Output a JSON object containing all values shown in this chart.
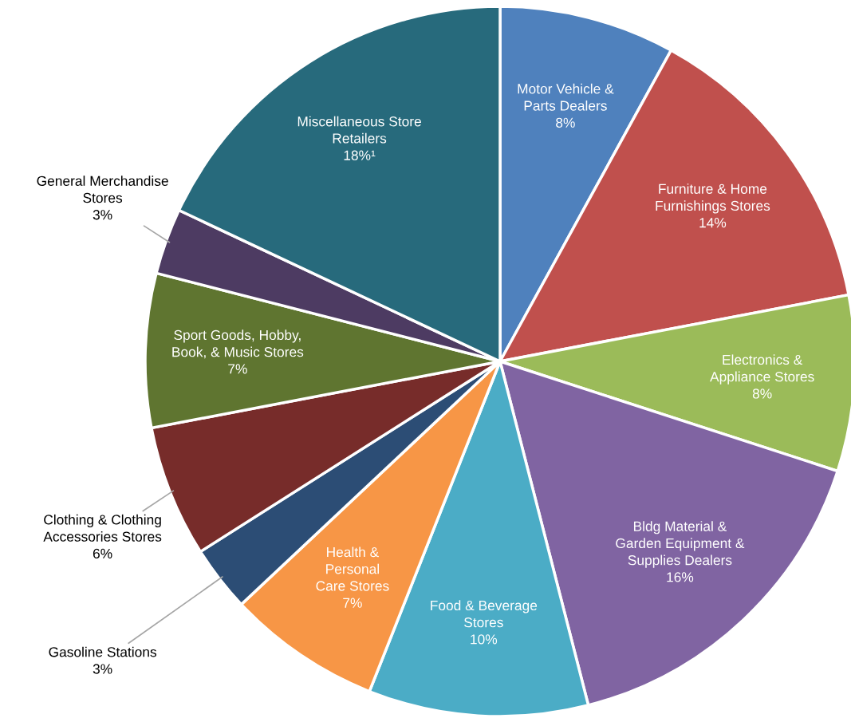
{
  "chart_data": {
    "type": "pie",
    "categories": [
      "Motor Vehicle &\nParts Dealers",
      "Furniture & Home\nFurnishings Stores",
      "Electronics &\nAppliance Stores",
      "Bldg Material &\nGarden Equipment &\nSupplies Dealers",
      "Food & Beverage\nStores",
      "Health &\nPersonal\nCare Stores",
      "Gasoline Stations",
      "Clothing & Clothing\nAccessories Stores",
      "Sport Goods, Hobby,\nBook, & Music Stores",
      "General Merchandise\nStores",
      "Miscellaneous Store\nRetailers"
    ],
    "values": [
      8,
      14,
      8,
      16,
      10,
      7,
      3,
      6,
      7,
      3,
      18
    ],
    "value_labels": [
      "8%",
      "14%",
      "8%",
      "16%",
      "10%",
      "7%",
      "3%",
      "6%",
      "7%",
      "3%",
      "18%¹"
    ],
    "colors": [
      "#4f81bd",
      "#c0504d",
      "#9bbb59",
      "#8064a2",
      "#4bacc6",
      "#f79646",
      "#2c4d75",
      "#772c2a",
      "#5f7530",
      "#4d3b62",
      "#276a7c"
    ]
  }
}
